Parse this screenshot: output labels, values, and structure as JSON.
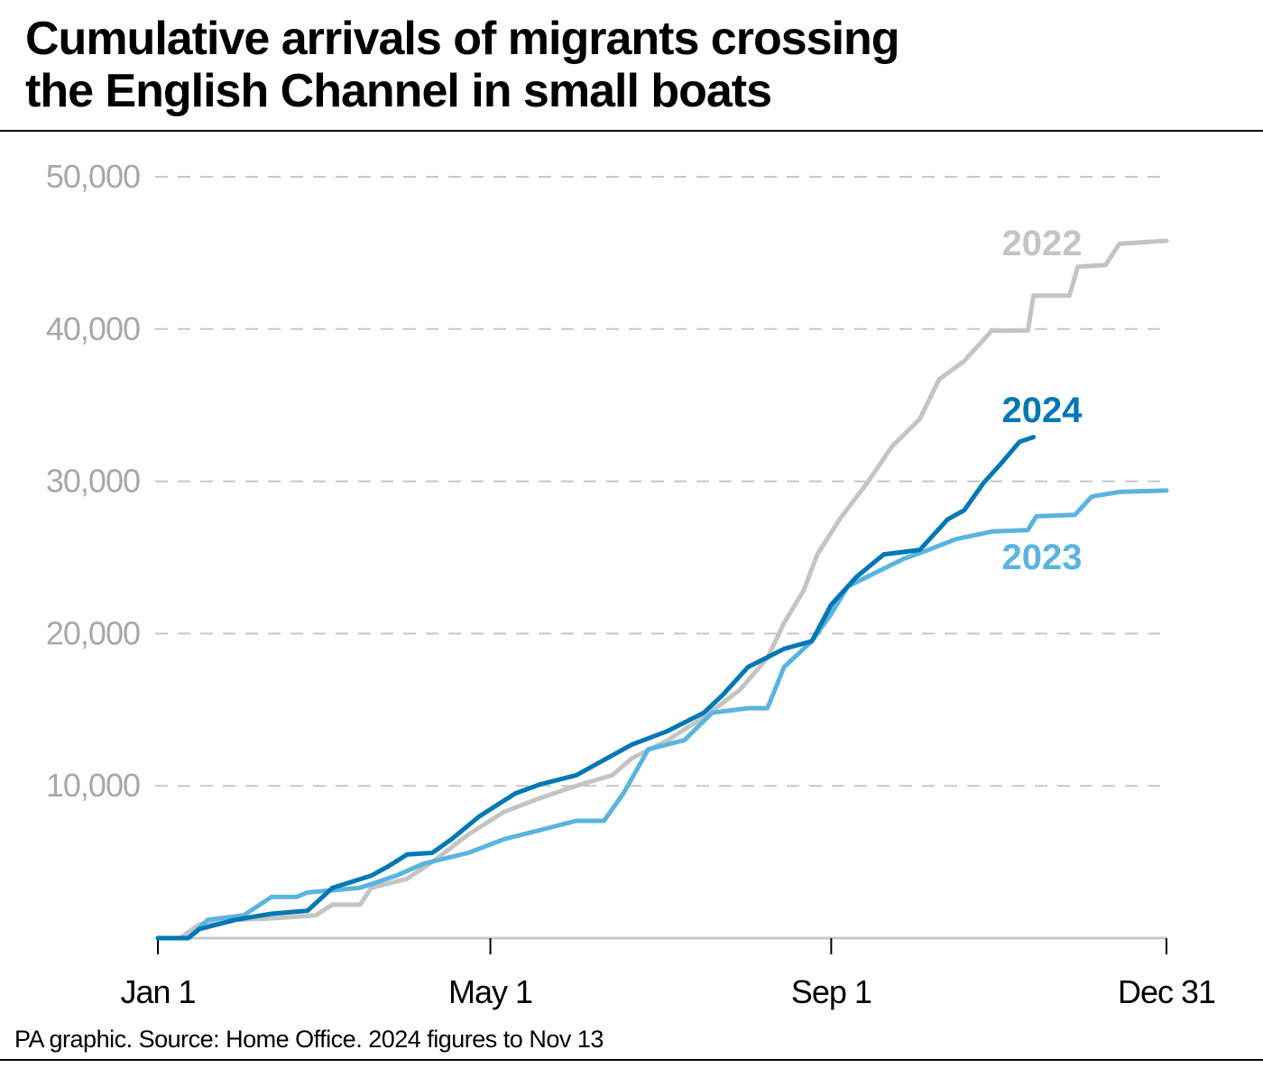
{
  "title_lines": [
    "Cumulative arrivals of migrants crossing",
    "the English Channel in small boats"
  ],
  "footer": "PA graphic. Source: Home Office. 2024 figures to Nov 13",
  "chart_data": {
    "type": "line",
    "title": "Cumulative arrivals of migrants crossing the English Channel in small boats",
    "xlabel": "",
    "ylabel": "",
    "x_ticks": [
      "Jan 1",
      "May 1",
      "Sep 1",
      "Dec 31"
    ],
    "y_ticks": [
      10000,
      20000,
      30000,
      40000,
      50000
    ],
    "y_tick_labels": [
      "10,000",
      "20,000",
      "30,000",
      "40,000",
      "50,000"
    ],
    "ylim": [
      0,
      50000
    ],
    "xlim": [
      "Jan 1",
      "Dec 31"
    ],
    "grid": "horizontal dashed",
    "legend": "direct labels at line ends",
    "series": [
      {
        "name": "2022",
        "color": "#c4c4c4",
        "x": [
          "Jan 1",
          "Jan 9",
          "Jan 16",
          "Jan 29",
          "Feb 11",
          "Feb 27",
          "Mar 5",
          "Mar 15",
          "Mar 19",
          "Apr 1",
          "Apr 10",
          "Apr 23",
          "May 6",
          "May 19",
          "Jun 1",
          "Jun 14",
          "Jun 21",
          "Jul 4",
          "Jul 17",
          "Jul 30",
          "Aug 9",
          "Aug 15",
          "Aug 22",
          "Aug 27",
          "Sep 4",
          "Sep 14",
          "Sep 23",
          "Oct 3",
          "Oct 10",
          "Oct 19",
          "Oct 29",
          "Nov 11",
          "Nov 13",
          "Nov 26",
          "Nov 29",
          "Dec 9",
          "Dec 14",
          "Dec 31"
        ],
        "y": [
          0,
          0,
          900,
          1200,
          1300,
          1500,
          2200,
          2200,
          3300,
          3900,
          5000,
          6800,
          8300,
          9200,
          10000,
          10700,
          11800,
          13000,
          14500,
          16300,
          18400,
          20700,
          22800,
          25200,
          27500,
          29900,
          32300,
          34100,
          36700,
          37900,
          39900,
          39900,
          42200,
          42200,
          44100,
          44200,
          45600,
          45800
        ]
      },
      {
        "name": "2023",
        "color": "#5ab4e0",
        "x": [
          "Jan 1",
          "Jan 12",
          "Jan 19",
          "Feb 1",
          "Feb 11",
          "Feb 20",
          "Feb 24",
          "Mar 15",
          "Mar 28",
          "Apr 7",
          "Apr 23",
          "May 6",
          "May 19",
          "Jun 1",
          "Jun 11",
          "Jun 18",
          "Jun 27",
          "Jul 10",
          "Jul 20",
          "Aug 2",
          "Aug 9",
          "Aug 15",
          "Aug 25",
          "Sep 1",
          "Sep 7",
          "Sep 17",
          "Sep 27",
          "Oct 6",
          "Oct 16",
          "Oct 29",
          "Nov 11",
          "Nov 14",
          "Nov 28",
          "Dec 4",
          "Dec 14",
          "Dec 31"
        ],
        "y": [
          0,
          0,
          1200,
          1500,
          2700,
          2700,
          3000,
          3300,
          4100,
          4900,
          5600,
          6500,
          7100,
          7700,
          7700,
          9500,
          12400,
          13000,
          14800,
          15100,
          15100,
          17800,
          19500,
          21300,
          23100,
          24000,
          24900,
          25500,
          26200,
          26700,
          26800,
          27700,
          27800,
          29000,
          29300,
          29400
        ]
      },
      {
        "name": "2024",
        "color": "#0077b6",
        "x": [
          "Jan 1",
          "Jan 12",
          "Jan 16",
          "Jan 29",
          "Feb 11",
          "Feb 24",
          "Mar 5",
          "Mar 19",
          "Mar 25",
          "Apr 1",
          "Apr 10",
          "Apr 17",
          "Apr 27",
          "May 10",
          "May 19",
          "Jun 1",
          "Jun 8",
          "Jun 21",
          "Jul 4",
          "Jul 17",
          "Jul 24",
          "Aug 2",
          "Aug 15",
          "Aug 25",
          "Sep 1",
          "Sep 10",
          "Sep 20",
          "Oct 3",
          "Oct 13",
          "Oct 19",
          "Oct 26",
          "Nov 1",
          "Nov 8",
          "Nov 13"
        ],
        "y": [
          0,
          0,
          600,
          1200,
          1600,
          1800,
          3300,
          4100,
          4700,
          5500,
          5600,
          6500,
          8000,
          9500,
          10100,
          10700,
          11400,
          12700,
          13600,
          14800,
          16000,
          17800,
          19000,
          19500,
          21900,
          23700,
          25200,
          25500,
          27500,
          28100,
          29900,
          31100,
          32600,
          32900
        ]
      }
    ]
  }
}
